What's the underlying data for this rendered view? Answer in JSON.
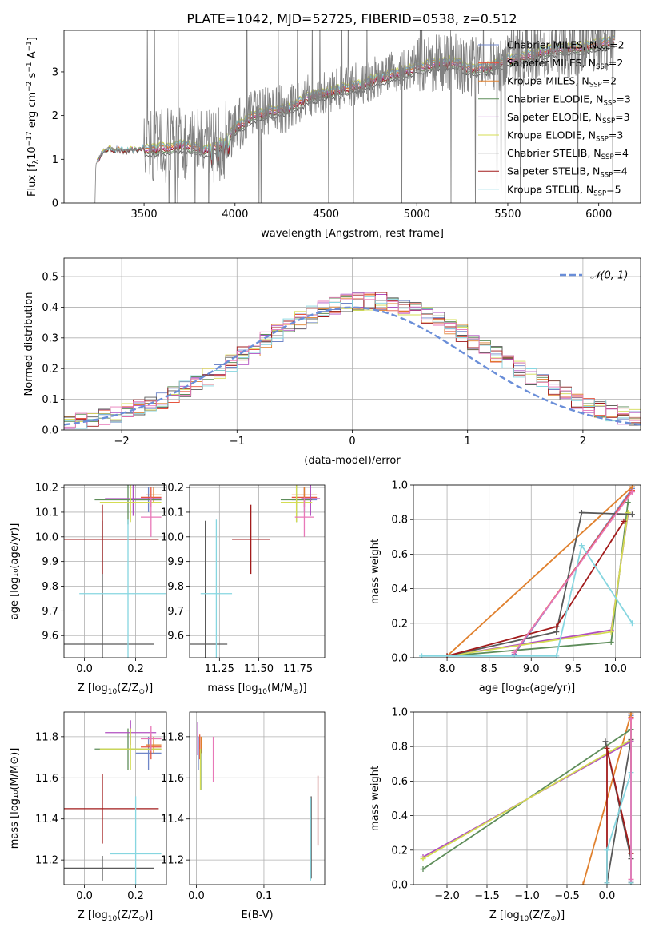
{
  "figure": {
    "title": "PLATE=1042, MJD=52725, FIBERID=0538, z=0.512"
  },
  "colors": {
    "chabrier_miles": "#6f86c8",
    "salpeter_miles": "#e6553f",
    "kroupa_miles": "#e0802d",
    "chabrier_elodie": "#5e8d5a",
    "salpeter_elodie": "#b04fc0",
    "kroupa_elodie": "#d4dc52",
    "chabrier_stelib": "#595959",
    "salpeter_stelib": "#a21b1b",
    "kroupa_stelib": "#86d6e0",
    "observed": "#808080",
    "normal": "#6a8ed8",
    "extra_pink": "#e878b8"
  },
  "chart_data": [
    {
      "id": "spectrum",
      "type": "line",
      "title": "PLATE=1042, MJD=52725, FIBERID=0538, z=0.512",
      "xlabel": "wavelength [Angstrom, rest frame]",
      "ylabel": "Flux [f",
      "ylabel_sub": "λ",
      "ylabel_rest": "10",
      "ylabel_sup1": "−17",
      "ylabel_rest2": " erg cm",
      "ylabel_sup2": "−2",
      "ylabel_rest3": " s",
      "ylabel_sup3": "−1",
      "ylabel_rest4": " A",
      "ylabel_sup4": "−1",
      "ylabel_end": "]",
      "xlim": [
        3060,
        6230
      ],
      "ylim": [
        0,
        3.95
      ],
      "xticks": [
        3500,
        4000,
        4500,
        5000,
        5500,
        6000
      ],
      "yticks": [
        0,
        1,
        2,
        3
      ],
      "grid": false,
      "legend_position": "top-right",
      "legend": [
        {
          "label": "Chabrier MILES, N",
          "sub": "SSP",
          "tail": "=2",
          "color": "#6f86c8"
        },
        {
          "label": "Salpeter MILES, N",
          "sub": "SSP",
          "tail": "=2",
          "color": "#e6553f"
        },
        {
          "label": "Kroupa MILES, N",
          "sub": "SSP",
          "tail": "=2",
          "color": "#e0802d"
        },
        {
          "label": "Chabrier ELODIE, N",
          "sub": "SSP",
          "tail": "=3",
          "color": "#5e8d5a"
        },
        {
          "label": "Salpeter ELODIE, N",
          "sub": "SSP",
          "tail": "=3",
          "color": "#b04fc0"
        },
        {
          "label": "Kroupa ELODIE, N",
          "sub": "SSP",
          "tail": "=3",
          "color": "#d4dc52"
        },
        {
          "label": "Chabrier STELIB, N",
          "sub": "SSP",
          "tail": "=4",
          "color": "#595959"
        },
        {
          "label": "Salpeter STELIB, N",
          "sub": "SSP",
          "tail": "=4",
          "color": "#a21b1b"
        },
        {
          "label": "Kroupa STELIB, N",
          "sub": "SSP",
          "tail": "=5",
          "color": "#86d6e0"
        }
      ],
      "continuum": [
        [
          3230,
          0.0
        ],
        [
          3235,
          0.9
        ],
        [
          3260,
          1.1
        ],
        [
          3300,
          1.25
        ],
        [
          3400,
          1.2
        ],
        [
          3500,
          1.25
        ],
        [
          3600,
          1.3
        ],
        [
          3700,
          1.35
        ],
        [
          3800,
          1.3
        ],
        [
          3850,
          1.25
        ],
        [
          3900,
          1.3
        ],
        [
          3950,
          1.45
        ],
        [
          4000,
          1.75
        ],
        [
          4100,
          2.0
        ],
        [
          4200,
          2.15
        ],
        [
          4300,
          2.2
        ],
        [
          4400,
          2.45
        ],
        [
          4500,
          2.55
        ],
        [
          4600,
          2.65
        ],
        [
          4700,
          2.75
        ],
        [
          4800,
          2.9
        ],
        [
          4900,
          3.0
        ],
        [
          5000,
          3.15
        ],
        [
          5100,
          3.2
        ],
        [
          5200,
          3.25
        ],
        [
          5300,
          3.1
        ],
        [
          5400,
          3.15
        ],
        [
          5500,
          3.3
        ],
        [
          5600,
          3.4
        ],
        [
          5700,
          3.5
        ],
        [
          5800,
          3.55
        ],
        [
          5900,
          3.6
        ],
        [
          6000,
          3.7
        ],
        [
          6090,
          3.75
        ]
      ]
    },
    {
      "id": "residuals",
      "type": "line",
      "xlabel": "(data-model)/error",
      "ylabel": "Normed distribution",
      "xlim": [
        -2.5,
        2.5
      ],
      "ylim": [
        0,
        0.56
      ],
      "xticks": [
        -2,
        -1,
        0,
        1,
        2
      ],
      "yticks": [
        0.0,
        0.1,
        0.2,
        0.3,
        0.4,
        0.5
      ],
      "grid": true,
      "legend_position": "top-right",
      "legend_label": "𝒩(0, 1)",
      "normal": {
        "mean": 0,
        "sd": 1
      }
    },
    {
      "id": "age-vs-Z",
      "type": "scatter",
      "xlabel": "Z [log",
      "xlabel_sub": "10",
      "xlabel_rest": "(Z/Z",
      "xlabel_sub2": "⊙",
      "xlabel_end": ")]",
      "ylabel": "age  [log₁₀(age/yr)]",
      "xlim": [
        -0.08,
        0.32
      ],
      "ylim": [
        9.51,
        10.21
      ],
      "xticks": [
        0.0,
        0.2
      ],
      "yticks": [
        9.6,
        9.7,
        9.8,
        9.9,
        10.0,
        10.1,
        10.2
      ],
      "grid": true,
      "points": [
        {
          "x": 0.25,
          "y": 10.15,
          "xerr": 0.05,
          "yerr": 0.05,
          "color": "#6f86c8"
        },
        {
          "x": 0.26,
          "y": 10.16,
          "xerr": 0.04,
          "yerr": 0.04,
          "color": "#e6553f"
        },
        {
          "x": 0.27,
          "y": 10.17,
          "xerr": 0.03,
          "yerr": 0.03,
          "color": "#e0802d"
        },
        {
          "x": 0.17,
          "y": 10.15,
          "xerr": 0.13,
          "yerr": 0.1,
          "color": "#5e8d5a"
        },
        {
          "x": 0.19,
          "y": 10.155,
          "xerr": 0.11,
          "yerr": 0.07,
          "color": "#b04fc0"
        },
        {
          "x": 0.18,
          "y": 10.14,
          "xerr": 0.12,
          "yerr": 0.08,
          "color": "#d4dc52"
        },
        {
          "x": 0.07,
          "y": 9.565,
          "xerr": 0.2,
          "yerr": 0.5,
          "color": "#595959"
        },
        {
          "x": 0.07,
          "y": 9.99,
          "xerr": 0.22,
          "yerr": 0.14,
          "color": "#a21b1b"
        },
        {
          "x": 0.17,
          "y": 9.77,
          "xerr": 0.19,
          "yerr": 0.3,
          "color": "#86d6e0"
        },
        {
          "x": 0.26,
          "y": 10.08,
          "xerr": 0.04,
          "yerr": 0.08,
          "color": "#e878b8"
        }
      ]
    },
    {
      "id": "age-vs-mass",
      "type": "scatter",
      "xlabel": "mass [log",
      "xlabel_sub": "10",
      "xlabel_rest": "(M/M",
      "xlabel_sub2": "⊙",
      "xlabel_end": ")]",
      "xlim": [
        11.06,
        11.92
      ],
      "ylim": [
        9.51,
        10.21
      ],
      "xticks": [
        11.25,
        11.5,
        11.75
      ],
      "xtick_labels": [
        "11.25",
        "11.50",
        "11.75"
      ],
      "yticks": [
        9.6,
        9.7,
        9.8,
        9.9,
        10.0,
        10.1,
        10.2
      ],
      "grid": true,
      "points": [
        {
          "x": 11.79,
          "y": 10.15,
          "xerr": 0.08,
          "yerr": 0.05,
          "color": "#6f86c8"
        },
        {
          "x": 11.79,
          "y": 10.16,
          "xerr": 0.08,
          "yerr": 0.04,
          "color": "#e6553f"
        },
        {
          "x": 11.79,
          "y": 10.17,
          "xerr": 0.08,
          "yerr": 0.03,
          "color": "#e0802d"
        },
        {
          "x": 11.74,
          "y": 10.15,
          "xerr": 0.1,
          "yerr": 0.09,
          "color": "#5e8d5a"
        },
        {
          "x": 11.83,
          "y": 10.155,
          "xerr": 0.06,
          "yerr": 0.07,
          "color": "#b04fc0"
        },
        {
          "x": 11.74,
          "y": 10.14,
          "xerr": 0.1,
          "yerr": 0.08,
          "color": "#d4dc52"
        },
        {
          "x": 11.16,
          "y": 9.565,
          "xerr": 0.14,
          "yerr": 0.5,
          "color": "#595959"
        },
        {
          "x": 11.45,
          "y": 9.99,
          "xerr": 0.12,
          "yerr": 0.14,
          "color": "#a21b1b"
        },
        {
          "x": 11.23,
          "y": 9.77,
          "xerr": 0.1,
          "yerr": 0.3,
          "color": "#86d6e0"
        },
        {
          "x": 11.79,
          "y": 10.08,
          "xerr": 0.06,
          "yerr": 0.08,
          "color": "#e878b8"
        }
      ]
    },
    {
      "id": "massweight-vs-age",
      "type": "line",
      "xlabel": "age  [log₁₀(age/yr)]",
      "ylabel": "mass weight",
      "xlim": [
        7.6,
        10.3
      ],
      "ylim": [
        0,
        1
      ],
      "xticks": [
        8.0,
        8.5,
        9.0,
        9.5,
        10.0
      ],
      "yticks": [
        0.0,
        0.2,
        0.4,
        0.6,
        0.8,
        1.0
      ],
      "grid": true,
      "series": [
        {
          "color": "#6f86c8",
          "x": [
            8.8,
            10.2
          ],
          "y": [
            0.02,
            0.98
          ]
        },
        {
          "color": "#e6553f",
          "x": [
            8.8,
            10.2
          ],
          "y": [
            0.03,
            0.97
          ]
        },
        {
          "color": "#e0802d",
          "x": [
            8.0,
            10.2
          ],
          "y": [
            0.01,
            0.99
          ]
        },
        {
          "color": "#5e8d5a",
          "x": [
            8.0,
            9.95,
            10.15
          ],
          "y": [
            0.01,
            0.09,
            0.9
          ]
        },
        {
          "color": "#b04fc0",
          "x": [
            8.0,
            9.95,
            10.15
          ],
          "y": [
            0.01,
            0.16,
            0.83
          ]
        },
        {
          "color": "#d4dc52",
          "x": [
            8.0,
            9.95,
            10.15
          ],
          "y": [
            0.01,
            0.15,
            0.84
          ]
        },
        {
          "color": "#595959",
          "x": [
            8.0,
            9.3,
            9.6,
            10.2
          ],
          "y": [
            0.01,
            0.15,
            0.84,
            0.83
          ]
        },
        {
          "color": "#a21b1b",
          "x": [
            8.0,
            9.3,
            10.1
          ],
          "y": [
            0.01,
            0.18,
            0.79
          ]
        },
        {
          "color": "#86d6e0",
          "x": [
            7.7,
            9.3,
            9.6,
            10.2
          ],
          "y": [
            0.01,
            0.01,
            0.65,
            0.2
          ]
        },
        {
          "color": "#e878b8",
          "x": [
            8.8,
            10.2
          ],
          "y": [
            0.03,
            0.96
          ]
        }
      ]
    },
    {
      "id": "mass-vs-Z",
      "type": "scatter",
      "xlabel": "Z [log",
      "xlabel_sub": "10",
      "xlabel_rest": "(Z/Z",
      "xlabel_sub2": "⊙",
      "xlabel_end": ")]",
      "ylabel": "mass [log₁₀(M/M⊙)]",
      "xlim": [
        -0.08,
        0.32
      ],
      "ylim": [
        11.08,
        11.92
      ],
      "xticks": [
        0.0,
        0.2
      ],
      "yticks": [
        11.2,
        11.4,
        11.6,
        11.8
      ],
      "grid": true,
      "points": [
        {
          "x": 0.25,
          "y": 11.72,
          "xerr": 0.05,
          "yerr": 0.08,
          "color": "#6f86c8"
        },
        {
          "x": 0.26,
          "y": 11.75,
          "xerr": 0.04,
          "yerr": 0.06,
          "color": "#e6553f"
        },
        {
          "x": 0.27,
          "y": 11.76,
          "xerr": 0.03,
          "yerr": 0.04,
          "color": "#e0802d"
        },
        {
          "x": 0.17,
          "y": 11.74,
          "xerr": 0.13,
          "yerr": 0.1,
          "color": "#5e8d5a"
        },
        {
          "x": 0.18,
          "y": 11.82,
          "xerr": 0.1,
          "yerr": 0.06,
          "color": "#b04fc0"
        },
        {
          "x": 0.18,
          "y": 11.74,
          "xerr": 0.12,
          "yerr": 0.1,
          "color": "#d4dc52"
        },
        {
          "x": 0.07,
          "y": 11.16,
          "xerr": 0.2,
          "yerr": 0.06,
          "color": "#595959"
        },
        {
          "x": 0.07,
          "y": 11.45,
          "xerr": 0.22,
          "yerr": 0.17,
          "color": "#a21b1b"
        },
        {
          "x": 0.2,
          "y": 11.23,
          "xerr": 0.1,
          "yerr": 0.28,
          "color": "#86d6e0"
        },
        {
          "x": 0.26,
          "y": 11.79,
          "xerr": 0.04,
          "yerr": 0.06,
          "color": "#e878b8"
        }
      ]
    },
    {
      "id": "mass-vs-ebv",
      "type": "scatter",
      "xlabel": "E(B-V)",
      "xlim": [
        -0.01,
        0.19
      ],
      "ylim": [
        11.08,
        11.92
      ],
      "xticks": [
        0.0,
        0.1
      ],
      "yticks": [
        11.2,
        11.4,
        11.6,
        11.8
      ],
      "grid": true,
      "points": [
        {
          "x": 0.003,
          "y": 11.72,
          "yerr": 0.08,
          "color": "#6f86c8"
        },
        {
          "x": 0.005,
          "y": 11.75,
          "yerr": 0.06,
          "color": "#e6553f"
        },
        {
          "x": 0.007,
          "y": 11.76,
          "yerr": 0.04,
          "color": "#e0802d"
        },
        {
          "x": 0.008,
          "y": 11.64,
          "yerr": 0.1,
          "color": "#5e8d5a"
        },
        {
          "x": 0.002,
          "y": 11.79,
          "yerr": 0.08,
          "color": "#b04fc0"
        },
        {
          "x": 0.006,
          "y": 11.64,
          "yerr": 0.1,
          "color": "#d4dc52"
        },
        {
          "x": 0.17,
          "y": 11.31,
          "yerr": 0.2,
          "color": "#595959"
        },
        {
          "x": 0.18,
          "y": 11.44,
          "yerr": 0.17,
          "color": "#a21b1b"
        },
        {
          "x": 0.169,
          "y": 11.3,
          "yerr": 0.2,
          "color": "#86d6e0"
        },
        {
          "x": 0.025,
          "y": 11.69,
          "yerr": 0.11,
          "color": "#e878b8"
        }
      ]
    },
    {
      "id": "massweight-vs-Z",
      "type": "line",
      "xlabel": "Z [log",
      "xlabel_sub": "10",
      "xlabel_rest": "(Z/Z",
      "xlabel_sub2": "⊙",
      "xlabel_end": ")]",
      "ylabel": "mass weight",
      "xlim": [
        -2.42,
        0.42
      ],
      "ylim": [
        0,
        1
      ],
      "xticks": [
        -2.0,
        -1.5,
        -1.0,
        -0.5,
        0.0
      ],
      "yticks": [
        0.0,
        0.2,
        0.4,
        0.6,
        0.8,
        1.0
      ],
      "grid": true,
      "series": [
        {
          "color": "#6f86c8",
          "x": [
            0.3,
            0.3
          ],
          "y": [
            0.02,
            0.98
          ]
        },
        {
          "color": "#e6553f",
          "x": [
            0.3,
            0.3
          ],
          "y": [
            0.03,
            0.97
          ]
        },
        {
          "color": "#e0802d",
          "x": [
            -0.3,
            0.3,
            0.3
          ],
          "y": [
            0.0,
            0.99,
            0.01
          ]
        },
        {
          "color": "#5e8d5a",
          "x": [
            -2.3,
            0.3,
            0.3
          ],
          "y": [
            0.09,
            0.9,
            0.01
          ]
        },
        {
          "color": "#b04fc0",
          "x": [
            -2.3,
            0.3,
            0.3
          ],
          "y": [
            0.16,
            0.83,
            0.01
          ]
        },
        {
          "color": "#d4dc52",
          "x": [
            -2.3,
            0.3,
            0.3
          ],
          "y": [
            0.15,
            0.84,
            0.01
          ]
        },
        {
          "color": "#595959",
          "x": [
            0.0,
            0.3,
            0.3,
            -0.02
          ],
          "y": [
            0.01,
            0.84,
            0.15,
            0.83
          ]
        },
        {
          "color": "#a21b1b",
          "x": [
            0.0,
            0.0,
            0.3,
            0.3
          ],
          "y": [
            0.01,
            0.79,
            0.18,
            0.01
          ]
        },
        {
          "color": "#86d6e0",
          "x": [
            0.0,
            0.0,
            0.3,
            0.3
          ],
          "y": [
            0.01,
            0.2,
            0.65,
            0.01
          ]
        },
        {
          "color": "#e878b8",
          "x": [
            0.3,
            0.3
          ],
          "y": [
            0.03,
            0.96
          ]
        }
      ]
    }
  ]
}
